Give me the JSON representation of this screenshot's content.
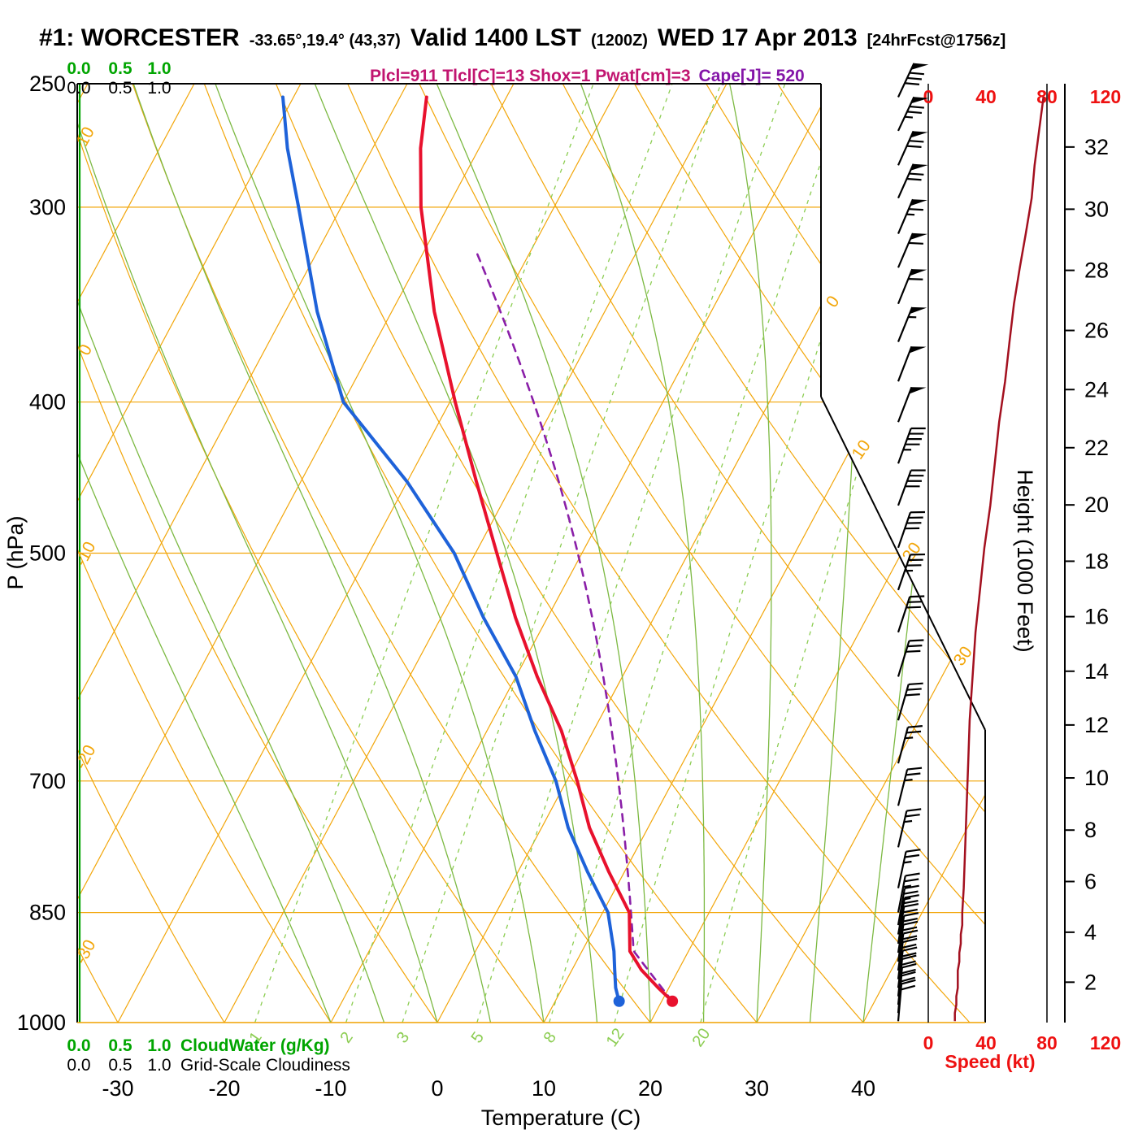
{
  "header": {
    "station_id": "#1: WORCESTER",
    "coords": "-33.65°,19.4° (43,37)",
    "valid_main": "Valid 1400 LST",
    "valid_z": "(1200Z)",
    "valid_date": "WED 17 Apr 2013",
    "forecast_tag": "[24hrFcst@1756z]",
    "params": "Plcl=911 Tlcl[C]=13 Shox=1 Pwat[cm]=3",
    "cape": "Cape[J]= 520"
  },
  "labels": {
    "pressure_axis": "P (hPa)",
    "temp_axis": "Temperature (C)",
    "height_axis": "Height (1000 Feet)",
    "speed_axis": "Speed (kt)",
    "cloudwater": "CloudWater (g/Kg)",
    "cloudiness": "Grid-Scale Cloudiness",
    "scale_ticks": [
      "0.0",
      "0.5",
      "1.0"
    ]
  },
  "colors": {
    "isotherm": "#f2a60a",
    "moist": "#7cb942",
    "mixing": "#8ccd52",
    "green": "#00a500",
    "temp_curve": "#e8112d",
    "dew_curve": "#1e62d9",
    "parcel": "#8a1fa8",
    "speed_curve": "#a3101f",
    "red_axis": "#ee1111",
    "params": "#c11570",
    "cape": "#8415a8"
  },
  "chart_data": {
    "type": "skewt",
    "pressure_ticks": [
      250,
      300,
      400,
      500,
      700,
      850,
      1000
    ],
    "temp_ticks": [
      -30,
      -20,
      -10,
      0,
      10,
      20,
      30,
      40
    ],
    "height_ticks_kft": [
      2,
      4,
      6,
      8,
      10,
      12,
      14,
      16,
      18,
      20,
      22,
      24,
      26,
      28,
      30,
      32
    ],
    "speed_ticks": [
      0,
      40,
      80,
      120
    ],
    "isotherm_labels": [
      0,
      10,
      20,
      30
    ],
    "dry_adiabat_labels": [
      10,
      0,
      -10,
      -20,
      -30
    ],
    "isotherm_range": {
      "min": -100,
      "max": 40,
      "step": 10
    },
    "dry_adiabat_range": {
      "min": -40,
      "max": 200,
      "step": 10
    },
    "moist_adiabat_range": {
      "min": -10,
      "max": 40,
      "step": 5
    },
    "mixing_ratios": [
      1,
      2,
      3,
      5,
      8,
      12,
      20
    ],
    "surface": {
      "pressure": 969,
      "temp": 21,
      "dewpoint": 16
    },
    "sounding": {
      "pressure": [
        969,
        950,
        925,
        900,
        850,
        800,
        750,
        700,
        650,
        600,
        550,
        500,
        450,
        400,
        350,
        300,
        275,
        255
      ],
      "temp": [
        21,
        19,
        16.5,
        14.5,
        12.5,
        8.5,
        4.5,
        1.0,
        -3.0,
        -8.0,
        -13.0,
        -18.0,
        -23.5,
        -29.5,
        -36.0,
        -42.5,
        -45.5,
        -47.5
      ],
      "dewpoint": [
        16,
        15,
        14,
        13,
        10.5,
        6.5,
        2.5,
        -1.0,
        -5.5,
        -10,
        -16,
        -22,
        -30,
        -40,
        -47,
        -54,
        -58,
        -61
      ]
    },
    "parcel": {
      "lcl_pressure": 911,
      "lcl_temp_c": 13,
      "cape_j": 520,
      "showalter": 1,
      "pwat_cm": 3
    },
    "winds": [
      {
        "p": 255,
        "s": 78,
        "d": 25
      },
      {
        "p": 268,
        "s": 75,
        "d": 25
      },
      {
        "p": 282,
        "s": 72,
        "d": 24
      },
      {
        "p": 296,
        "s": 70,
        "d": 24
      },
      {
        "p": 312,
        "s": 66,
        "d": 23
      },
      {
        "p": 328,
        "s": 62,
        "d": 23
      },
      {
        "p": 346,
        "s": 58,
        "d": 22
      },
      {
        "p": 366,
        "s": 55,
        "d": 22
      },
      {
        "p": 388,
        "s": 52,
        "d": 21
      },
      {
        "p": 412,
        "s": 48,
        "d": 21
      },
      {
        "p": 438,
        "s": 45,
        "d": 20
      },
      {
        "p": 466,
        "s": 42,
        "d": 20
      },
      {
        "p": 496,
        "s": 38,
        "d": 19
      },
      {
        "p": 528,
        "s": 35,
        "d": 19
      },
      {
        "p": 562,
        "s": 32,
        "d": 18
      },
      {
        "p": 600,
        "s": 30,
        "d": 17
      },
      {
        "p": 640,
        "s": 28,
        "d": 16
      },
      {
        "p": 682,
        "s": 27,
        "d": 15
      },
      {
        "p": 726,
        "s": 26,
        "d": 14
      },
      {
        "p": 772,
        "s": 25,
        "d": 13
      },
      {
        "p": 820,
        "s": 24,
        "d": 12
      },
      {
        "p": 850,
        "s": 23,
        "d": 11
      },
      {
        "p": 866,
        "s": 23,
        "d": 10
      },
      {
        "p": 878,
        "s": 22,
        "d": 10
      },
      {
        "p": 890,
        "s": 22,
        "d": 9
      },
      {
        "p": 902,
        "s": 21,
        "d": 9
      },
      {
        "p": 914,
        "s": 21,
        "d": 8
      },
      {
        "p": 926,
        "s": 20,
        "d": 8
      },
      {
        "p": 938,
        "s": 20,
        "d": 7
      },
      {
        "p": 950,
        "s": 20,
        "d": 7
      },
      {
        "p": 962,
        "s": 19,
        "d": 6
      },
      {
        "p": 974,
        "s": 19,
        "d": 6
      },
      {
        "p": 986,
        "s": 18,
        "d": 5
      },
      {
        "p": 998,
        "s": 18,
        "d": 5
      }
    ]
  }
}
